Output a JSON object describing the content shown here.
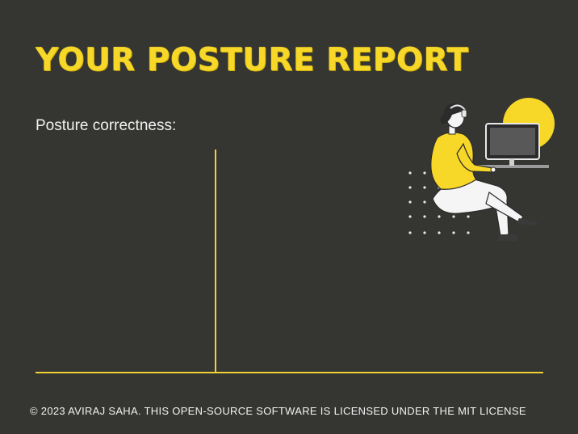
{
  "header": {
    "title": "YOUR POSTURE REPORT"
  },
  "report": {
    "label": "Posture correctness:"
  },
  "footer": {
    "text": "© 2023 AVIRAJ SAHA. THIS OPEN-SOURCE SOFTWARE IS LICENSED UNDER THE MIT LICENSE"
  },
  "illustration": {
    "icon": "person-at-computer-icon"
  },
  "colors": {
    "background": "#353532",
    "accent": "#f7d728",
    "text": "#f2f2f2"
  }
}
